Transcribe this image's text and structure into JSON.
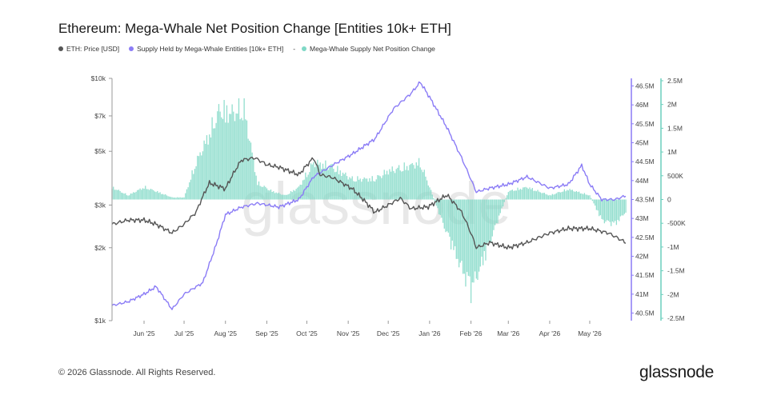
{
  "title": "Ethereum: Mega-Whale Net Position Change [Entities 10k+ ETH]",
  "legend": {
    "price": "ETH: Price [USD]",
    "supply": "Supply Held by Mega-Whale Entities [10k+ ETH]",
    "dash": "-",
    "change": "Mega-Whale Supply Net Position Change"
  },
  "colors": {
    "price": "#555555",
    "supply": "#8B7CF6",
    "change": "#7FD8C6",
    "axis_supply": "#8B7CF6",
    "axis_change": "#6CCFBD"
  },
  "footer": "© 2026 Glassnode. All Rights Reserved.",
  "brand": "glassnode",
  "watermark": "glassnode",
  "chart_data": {
    "type": "line",
    "x_tick_labels": [
      "Jun '25",
      "Jul '25",
      "Aug '25",
      "Sep '25",
      "Oct '25",
      "Nov '25",
      "Dec '25",
      "Jan '26",
      "Feb '26",
      "Mar '26",
      "Apr '26",
      "May '26"
    ],
    "x_range": [
      "2025-05-08",
      "2026-05-28"
    ],
    "left_axis": {
      "scale": "log",
      "range": [
        1000,
        10000
      ],
      "tick_labels": [
        "$10k",
        "$7k",
        "$5k",
        "$3k",
        "$2k",
        "$1k"
      ],
      "tick_values": [
        10000,
        7000,
        5000,
        3000,
        2000,
        1000
      ]
    },
    "right_axis_supply": {
      "range": [
        40.3,
        46.7
      ],
      "tick_labels": [
        "46.5M",
        "46M",
        "45.5M",
        "45M",
        "44.5M",
        "44M",
        "43.5M",
        "43M",
        "42.5M",
        "42M",
        "41.5M",
        "41M",
        "40.5M"
      ],
      "tick_values": [
        46.5,
        46,
        45.5,
        45,
        44.5,
        44,
        43.5,
        43,
        42.5,
        42,
        41.5,
        41,
        40.5
      ]
    },
    "right_axis_change": {
      "range": [
        -2.55,
        2.55
      ],
      "tick_labels": [
        "2.5M",
        "2M",
        "1.5M",
        "1M",
        "500K",
        "0",
        "-500K",
        "-1M",
        "-1.5M",
        "-2M",
        "-2.5M"
      ],
      "tick_values": [
        2.5,
        2,
        1.5,
        1,
        0.5,
        0,
        -0.5,
        -1,
        -1.5,
        -2,
        -2.5
      ]
    },
    "series": [
      {
        "name": "ETH: Price [USD]",
        "axis": "left",
        "x": [
          "2025-05-08",
          "2025-05-20",
          "2025-06-01",
          "2025-06-10",
          "2025-06-22",
          "2025-07-01",
          "2025-07-10",
          "2025-07-20",
          "2025-08-01",
          "2025-08-13",
          "2025-08-23",
          "2025-09-01",
          "2025-09-10",
          "2025-09-25",
          "2025-10-06",
          "2025-10-11",
          "2025-10-20",
          "2025-11-04",
          "2025-11-21",
          "2025-12-01",
          "2025-12-10",
          "2025-12-18",
          "2025-12-31",
          "2026-01-14",
          "2026-01-25",
          "2026-02-05",
          "2026-02-15",
          "2026-03-01",
          "2026-03-15",
          "2026-04-01",
          "2026-04-15",
          "2026-05-01",
          "2026-05-15",
          "2026-05-28"
        ],
        "values": [
          2500,
          2600,
          2600,
          2500,
          2300,
          2500,
          2800,
          3700,
          3500,
          4600,
          4700,
          4400,
          4300,
          4000,
          4700,
          4000,
          3900,
          3500,
          2800,
          3000,
          3200,
          2900,
          2950,
          3300,
          2800,
          2000,
          2100,
          2000,
          2100,
          2300,
          2400,
          2400,
          2300,
          2100
        ]
      },
      {
        "name": "Supply Held by Mega-Whale Entities [10k+ ETH]",
        "axis": "supply",
        "x": [
          "2025-05-08",
          "2025-05-20",
          "2025-06-01",
          "2025-06-10",
          "2025-06-22",
          "2025-07-01",
          "2025-07-15",
          "2025-07-25",
          "2025-08-01",
          "2025-08-13",
          "2025-08-25",
          "2025-09-10",
          "2025-09-25",
          "2025-10-06",
          "2025-10-20",
          "2025-11-04",
          "2025-11-21",
          "2025-12-05",
          "2025-12-18",
          "2025-12-25",
          "2026-01-01",
          "2026-01-14",
          "2026-01-25",
          "2026-02-05",
          "2026-02-15",
          "2026-03-01",
          "2026-03-15",
          "2026-04-01",
          "2026-04-15",
          "2026-04-25",
          "2026-05-01",
          "2026-05-10",
          "2026-05-20",
          "2026-05-28"
        ],
        "values": [
          40.7,
          40.8,
          41,
          41.2,
          40.6,
          41,
          41.3,
          42.3,
          43.1,
          43.3,
          43.4,
          43.3,
          43.5,
          44.1,
          44.4,
          44.7,
          45.1,
          45.9,
          46.3,
          46.6,
          46.2,
          45.4,
          44.6,
          43.7,
          43.8,
          43.9,
          44.1,
          43.8,
          43.9,
          44.4,
          43.9,
          43.5,
          43.5,
          43.6
        ]
      },
      {
        "name": "Mega-Whale Supply Net Position Change",
        "axis": "change",
        "type": "bar",
        "x": [
          "2025-05-08",
          "2025-05-20",
          "2025-06-01",
          "2025-06-10",
          "2025-06-22",
          "2025-07-01",
          "2025-07-10",
          "2025-07-20",
          "2025-07-28",
          "2025-08-05",
          "2025-08-15",
          "2025-08-25",
          "2025-09-05",
          "2025-09-15",
          "2025-09-25",
          "2025-10-06",
          "2025-10-20",
          "2025-11-04",
          "2025-11-21",
          "2025-12-01",
          "2025-12-15",
          "2025-12-25",
          "2026-01-01",
          "2026-01-10",
          "2026-01-20",
          "2026-02-01",
          "2026-02-10",
          "2026-02-20",
          "2026-03-01",
          "2026-03-15",
          "2026-04-01",
          "2026-04-15",
          "2026-05-01",
          "2026-05-10",
          "2026-05-20",
          "2026-05-28"
        ],
        "values": [
          0.3,
          0.1,
          0.3,
          0.2,
          0.05,
          0.05,
          0.9,
          1.6,
          2.2,
          2.1,
          2.2,
          0.4,
          0.2,
          0.1,
          0.3,
          0.9,
          0.8,
          0.5,
          0.5,
          0.7,
          0.8,
          0.9,
          0.3,
          -0.5,
          -1.3,
          -2.2,
          -1.5,
          -0.6,
          0.2,
          0.3,
          0.1,
          0.25,
          0.1,
          -0.5,
          -0.6,
          -0.3
        ]
      }
    ]
  }
}
